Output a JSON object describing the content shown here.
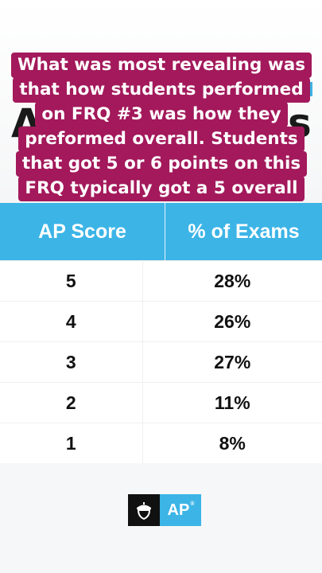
{
  "background": {
    "letter_left": "A",
    "letter_right": "s"
  },
  "caption": {
    "lines": [
      "What was most revealing was",
      "that how students performed",
      "on FRQ #3 was how they",
      "preformed overall. Students",
      "that got 5 or 6 points on this",
      "FRQ typically got a 5 overall"
    ],
    "color": "#a3195b"
  },
  "table": {
    "headers": [
      "AP Score",
      "% of Exams"
    ],
    "rows": [
      [
        "5",
        "28%"
      ],
      [
        "4",
        "26%"
      ],
      [
        "3",
        "27%"
      ],
      [
        "2",
        "11%"
      ],
      [
        "1",
        "8%"
      ]
    ],
    "header_color": "#3cb4e6"
  },
  "logo": {
    "text": "AP",
    "icon": "acorn-icon",
    "trademark": "®"
  }
}
